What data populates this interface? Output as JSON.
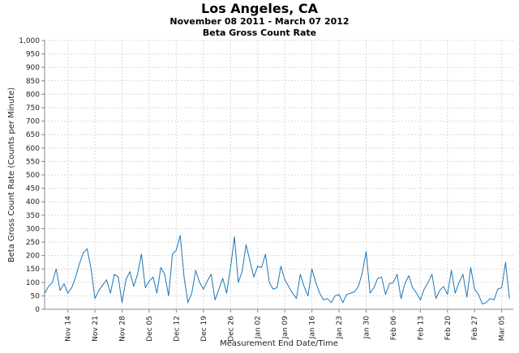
{
  "chart_data": {
    "type": "line",
    "title": "Los Angeles, CA",
    "subtitles": [
      "November 08 2011 - March 07 2012",
      "Beta Gross Count Rate"
    ],
    "xlabel": "Measurement End Date/Time",
    "ylabel": "Beta Gross Count Rate (Counts per Minute)",
    "ylim": [
      0,
      1000
    ],
    "yticks": [
      0,
      50,
      100,
      150,
      200,
      250,
      300,
      350,
      400,
      450,
      500,
      550,
      600,
      650,
      700,
      750,
      800,
      850,
      900,
      950,
      1000
    ],
    "ytick_labels": [
      "0",
      "50",
      "100",
      "150",
      "200",
      "250",
      "300",
      "350",
      "400",
      "450",
      "500",
      "550",
      "600",
      "650",
      "700",
      "750",
      "800",
      "850",
      "900",
      "950",
      "1,000"
    ],
    "xlim": [
      "2011-11-08",
      "2012-03-08"
    ],
    "xticks": [
      "2011-11-14",
      "2011-11-21",
      "2011-11-28",
      "2011-12-05",
      "2011-12-12",
      "2011-12-19",
      "2011-12-26",
      "2012-01-02",
      "2012-01-09",
      "2012-01-16",
      "2012-01-23",
      "2012-01-30",
      "2012-02-06",
      "2012-02-13",
      "2012-02-20",
      "2012-02-27",
      "2012-03-05"
    ],
    "xtick_labels": [
      "Nov 14",
      "Nov 21",
      "Nov 28",
      "Dec 05",
      "Dec 12",
      "Dec 19",
      "Dec 26",
      "Jan 02",
      "Jan 09",
      "Jan 16",
      "Jan 23",
      "Jan 30",
      "Feb 06",
      "Feb 13",
      "Feb 20",
      "Feb 27",
      "Mar 05"
    ],
    "grid": true,
    "line_color": "#1f77b4",
    "series": [
      {
        "x": [
          "2011-11-08",
          "2011-11-09",
          "2011-11-10",
          "2011-11-11",
          "2011-11-12",
          "2011-11-13",
          "2011-11-14",
          "2011-11-15",
          "2011-11-16",
          "2011-11-17",
          "2011-11-18",
          "2011-11-19",
          "2011-11-20",
          "2011-11-21",
          "2011-11-22",
          "2011-11-23",
          "2011-11-24",
          "2011-11-25",
          "2011-11-26",
          "2011-11-27",
          "2011-11-28",
          "2011-11-29",
          "2011-11-30",
          "2011-12-01",
          "2011-12-02",
          "2011-12-03",
          "2011-12-04",
          "2011-12-05",
          "2011-12-06",
          "2011-12-07",
          "2011-12-08",
          "2011-12-09",
          "2011-12-10",
          "2011-12-11",
          "2011-12-12",
          "2011-12-13",
          "2011-12-14",
          "2011-12-15",
          "2011-12-16",
          "2011-12-17",
          "2011-12-18",
          "2011-12-19",
          "2011-12-20",
          "2011-12-21",
          "2011-12-22",
          "2011-12-23",
          "2011-12-24",
          "2011-12-25",
          "2011-12-26",
          "2011-12-27",
          "2011-12-28",
          "2011-12-29",
          "2011-12-30",
          "2011-12-31",
          "2012-01-01",
          "2012-01-02",
          "2012-01-03",
          "2012-01-04",
          "2012-01-05",
          "2012-01-06",
          "2012-01-07",
          "2012-01-08",
          "2012-01-09",
          "2012-01-10",
          "2012-01-11",
          "2012-01-12",
          "2012-01-13",
          "2012-01-14",
          "2012-01-15",
          "2012-01-16",
          "2012-01-17",
          "2012-01-18",
          "2012-01-19",
          "2012-01-20",
          "2012-01-21",
          "2012-01-22",
          "2012-01-23",
          "2012-01-24",
          "2012-01-25",
          "2012-01-26",
          "2012-01-27",
          "2012-01-28",
          "2012-01-29",
          "2012-01-30",
          "2012-01-31",
          "2012-02-01",
          "2012-02-02",
          "2012-02-03",
          "2012-02-04",
          "2012-02-05",
          "2012-02-06",
          "2012-02-07",
          "2012-02-08",
          "2012-02-09",
          "2012-02-10",
          "2012-02-11",
          "2012-02-12",
          "2012-02-13",
          "2012-02-14",
          "2012-02-15",
          "2012-02-16",
          "2012-02-17",
          "2012-02-18",
          "2012-02-19",
          "2012-02-20",
          "2012-02-21",
          "2012-02-22",
          "2012-02-23",
          "2012-02-24",
          "2012-02-25",
          "2012-02-26",
          "2012-02-27",
          "2012-02-28",
          "2012-02-29",
          "2012-03-01",
          "2012-03-02",
          "2012-03-03",
          "2012-03-04",
          "2012-03-05",
          "2012-03-06",
          "2012-03-07"
        ],
        "y": [
          60,
          85,
          100,
          150,
          70,
          95,
          60,
          80,
          120,
          170,
          210,
          225,
          150,
          40,
          70,
          90,
          110,
          60,
          130,
          120,
          25,
          110,
          140,
          85,
          130,
          205,
          80,
          105,
          120,
          60,
          155,
          130,
          50,
          205,
          220,
          275,
          120,
          25,
          60,
          145,
          100,
          75,
          105,
          130,
          35,
          75,
          115,
          60,
          155,
          270,
          100,
          140,
          240,
          180,
          120,
          160,
          155,
          205,
          100,
          75,
          80,
          160,
          110,
          85,
          60,
          40,
          130,
          85,
          50,
          150,
          100,
          60,
          35,
          40,
          25,
          50,
          55,
          25,
          55,
          60,
          65,
          85,
          135,
          215,
          60,
          80,
          115,
          120,
          55,
          95,
          100,
          130,
          40,
          95,
          125,
          80,
          60,
          35,
          75,
          100,
          130,
          40,
          70,
          85,
          55,
          145,
          60,
          100,
          130,
          45,
          155,
          75,
          55,
          20,
          25,
          40,
          35,
          75,
          80,
          175,
          40
        ]
      }
    ]
  }
}
